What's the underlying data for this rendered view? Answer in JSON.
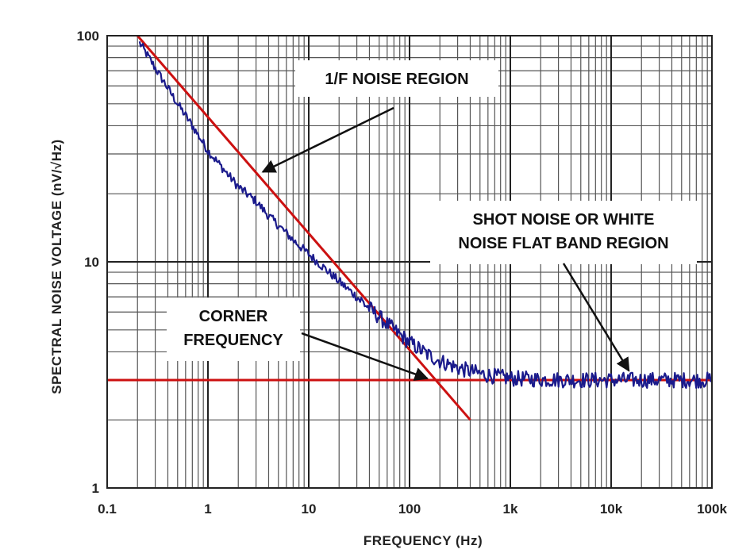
{
  "chart_data": {
    "type": "line",
    "x_scale": "log",
    "y_scale": "log",
    "xlim": [
      0.1,
      100000
    ],
    "ylim": [
      1,
      100
    ],
    "grid": true,
    "xlabel": "FREQUENCY  (Hz)",
    "ylabel": "SPECTRAL NOISE VOLTAGE (nV/√Hz)",
    "x_tick_values": [
      0.1,
      1,
      10,
      100,
      1000,
      10000,
      100000
    ],
    "x_tick_labels": [
      "0.1",
      "1",
      "10",
      "100",
      "1k",
      "10k",
      "100k"
    ],
    "y_tick_values": [
      1,
      10,
      100
    ],
    "y_tick_labels": [
      "1",
      "10",
      "100"
    ],
    "series": [
      {
        "kind": "measured",
        "color": "#1a1a8c",
        "x": [
          0.21,
          0.3,
          0.5,
          0.7,
          1,
          1.5,
          2,
          3,
          4,
          5,
          7,
          10,
          15,
          20,
          30,
          50,
          70,
          100,
          150,
          200,
          300,
          500,
          700,
          1000,
          2000,
          5000,
          10000,
          20000,
          50000,
          100000
        ],
        "y": [
          93,
          72,
          50,
          40,
          31,
          25,
          21.5,
          18.5,
          16,
          14.5,
          12.5,
          10.8,
          9.2,
          8.2,
          7,
          5.7,
          5,
          4.4,
          3.9,
          3.65,
          3.4,
          3.2,
          3.12,
          3.05,
          3.02,
          3.0,
          3.0,
          3.0,
          3.0,
          3.0
        ]
      },
      {
        "kind": "1/f asymptote",
        "color": "#cc1111",
        "x": [
          0.2,
          400
        ],
        "y": [
          100,
          2.0
        ]
      },
      {
        "kind": "white noise level",
        "color": "#cc1111",
        "x": [
          0.1,
          100000
        ],
        "y": [
          3.0,
          3.0
        ]
      }
    ],
    "annotations": [
      {
        "lines": [
          "1/F NOISE REGION"
        ],
        "points_to": [
          3.5,
          25
        ]
      },
      {
        "lines": [
          "SHOT NOISE OR WHITE",
          "NOISE FLAT BAND REGION"
        ],
        "points_to": [
          15000,
          3.3
        ]
      },
      {
        "lines": [
          "CORNER",
          "FREQUENCY"
        ],
        "points_to": [
          150,
          3.05
        ]
      }
    ]
  }
}
